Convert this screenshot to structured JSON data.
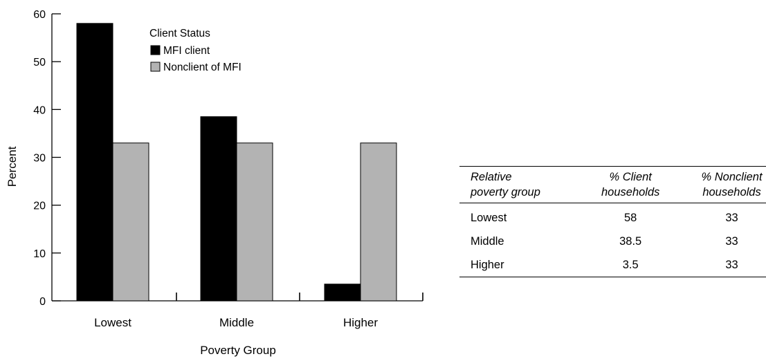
{
  "chart_data": {
    "type": "bar",
    "xlabel": "Poverty Group",
    "ylabel": "Percent",
    "ylim": [
      0,
      60
    ],
    "yticks": [
      0,
      10,
      20,
      30,
      40,
      50,
      60
    ],
    "categories": [
      "Lowest",
      "Middle",
      "Higher"
    ],
    "legend_title": "Client Status",
    "legend_position": "top-left",
    "grid": false,
    "series": [
      {
        "name": "MFI client",
        "values": [
          58,
          38.5,
          3.5
        ],
        "color": "#000000"
      },
      {
        "name": "Nonclient of MFI",
        "values": [
          33,
          33,
          33
        ],
        "color": "#b3b3b3"
      }
    ]
  },
  "table": {
    "headers": [
      [
        "Relative",
        "poverty group"
      ],
      [
        "% Client",
        "households"
      ],
      [
        "% Nonclient",
        "households"
      ]
    ],
    "rows": [
      [
        "Lowest",
        "58",
        "33"
      ],
      [
        "Middle",
        "38.5",
        "33"
      ],
      [
        "Higher",
        "3.5",
        "33"
      ]
    ]
  }
}
